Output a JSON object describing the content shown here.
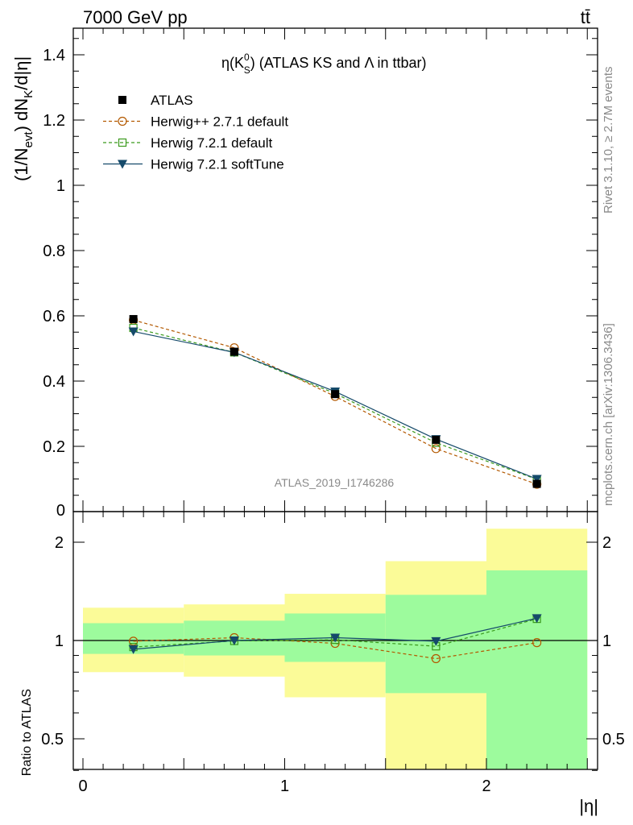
{
  "header": {
    "left": "7000 GeV pp",
    "right": "tt̄"
  },
  "side_labels": {
    "rivet": "Rivet 3.1.10, ≥ 2.7M events",
    "mcplots": "mcplots.cern.ch [arXiv:1306.3436]"
  },
  "chart_data": [
    {
      "type": "line",
      "title": "η(K⁰ₛ) (ATLAS KS and Λ in ttbar)",
      "title_parts": {
        "prefix": "η(K",
        "sup": "0",
        "sub": "S",
        "rest": ") (ATLAS KS and Λ in ttbar)"
      },
      "ylabel": "(1/N_evt) dN_K/d|η|",
      "ylabel_parts": {
        "a": "(1/N",
        "sub1": "evt",
        "b": ") dN",
        "sub2": "K",
        "c": "/d|η|"
      },
      "xlabel": "",
      "xlim": [
        -0.05,
        2.5
      ],
      "ylim": [
        0,
        1.5
      ],
      "yticks": [
        {
          "v": 0.2,
          "label": "0.2"
        },
        {
          "v": 0.4,
          "label": "0.4"
        },
        {
          "v": 0.6,
          "label": "0.6"
        },
        {
          "v": 0.8,
          "label": "0.8"
        },
        {
          "v": 1.0,
          "label": "1"
        },
        {
          "v": 1.2,
          "label": "1.2"
        },
        {
          "v": 1.4,
          "label": "1.4"
        },
        {
          "v": 0.0,
          "label": "0"
        }
      ],
      "x": [
        0.25,
        0.75,
        1.25,
        1.75,
        2.25
      ],
      "series": [
        {
          "name": "ATLAS",
          "values": [
            0.59,
            0.49,
            0.36,
            0.22,
            0.085
          ],
          "color": "#000000",
          "marker": "filled-square",
          "line": "none"
        },
        {
          "name": "Herwig++ 2.7.1 default",
          "values": [
            0.587,
            0.502,
            0.353,
            0.193,
            0.084
          ],
          "color": "#b35900",
          "marker": "open-circle",
          "line": "dashed"
        },
        {
          "name": "Herwig 7.2.1 default",
          "values": [
            0.563,
            0.488,
            0.362,
            0.211,
            0.099
          ],
          "color": "#3a9a1c",
          "marker": "open-square",
          "line": "dashed"
        },
        {
          "name": "Herwig 7.2.1 softTune",
          "values": [
            0.552,
            0.488,
            0.368,
            0.222,
            0.1
          ],
          "color": "#154a6a",
          "marker": "filled-triangle-down",
          "line": "solid"
        }
      ],
      "watermark": "ATLAS_2019_I1746286",
      "legend_position": "top-left"
    },
    {
      "type": "line",
      "ylabel": "Ratio to ATLAS",
      "xlabel": "|η|",
      "xlim": [
        -0.05,
        2.5
      ],
      "ylim": [
        0.33,
        2.3
      ],
      "y_scale": "log",
      "yticks": [
        {
          "v": 0.5,
          "label": "0.5"
        },
        {
          "v": 1,
          "label": "1"
        },
        {
          "v": 2,
          "label": "2"
        }
      ],
      "xticks": [
        {
          "v": 0,
          "label": "0"
        },
        {
          "v": 1,
          "label": "1"
        },
        {
          "v": 2,
          "label": "2"
        }
      ],
      "bins": [
        {
          "lo": 0.0,
          "hi": 0.5,
          "band_inner": [
            0.91,
            1.13
          ],
          "band_outer": [
            0.8,
            1.26
          ]
        },
        {
          "lo": 0.5,
          "hi": 1.0,
          "band_inner": [
            0.9,
            1.15
          ],
          "band_outer": [
            0.775,
            1.29
          ]
        },
        {
          "lo": 1.0,
          "hi": 1.5,
          "band_inner": [
            0.86,
            1.21
          ],
          "band_outer": [
            0.67,
            1.39
          ]
        },
        {
          "lo": 1.5,
          "hi": 2.0,
          "band_inner": [
            0.69,
            1.38
          ],
          "band_outer": [
            0.33,
            1.75
          ]
        },
        {
          "lo": 2.0,
          "hi": 2.5,
          "band_inner": [
            0.33,
            1.64
          ],
          "band_outer": [
            0.33,
            2.2
          ]
        }
      ],
      "band_colors": {
        "inner": "#9dfb9d",
        "outer": "#fbfb98"
      },
      "x": [
        0.25,
        0.75,
        1.25,
        1.75,
        2.25
      ],
      "series": [
        {
          "name": "Herwig++ 2.7.1 default",
          "values": [
            0.995,
            1.02,
            0.98,
            0.88,
            0.985
          ],
          "color": "#b35900",
          "marker": "open-circle",
          "line": "dashed"
        },
        {
          "name": "Herwig 7.2.1 default",
          "values": [
            0.955,
            0.997,
            1.005,
            0.96,
            1.165
          ],
          "color": "#3a9a1c",
          "marker": "open-square",
          "line": "dashed"
        },
        {
          "name": "Herwig 7.2.1 softTune",
          "values": [
            0.94,
            1.0,
            1.02,
            0.995,
            1.17
          ],
          "color": "#154a6a",
          "marker": "filled-triangle-down",
          "line": "solid"
        }
      ]
    }
  ]
}
